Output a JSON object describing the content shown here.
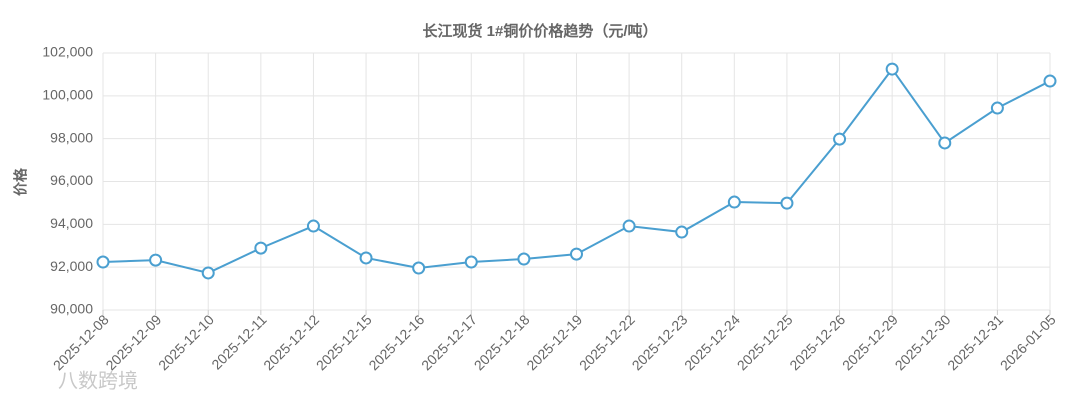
{
  "chart_data": {
    "type": "line",
    "title": "长江现货 1#铜价价格趋势（元/吨）",
    "y_label": "价格",
    "watermark": "八数跨境",
    "categories": [
      "2025-12-08",
      "2025-12-09",
      "2025-12-10",
      "2025-12-11",
      "2025-12-12",
      "2025-12-15",
      "2025-12-16",
      "2025-12-17",
      "2025-12-18",
      "2025-12-19",
      "2025-12-22",
      "2025-12-23",
      "2025-12-24",
      "2025-12-25",
      "2025-12-26",
      "2025-12-29",
      "2025-12-30",
      "2025-12-31",
      "2026-01-05"
    ],
    "values": [
      92240,
      92330,
      91730,
      92890,
      93920,
      92430,
      91960,
      92240,
      92380,
      92610,
      93920,
      93640,
      95040,
      94990,
      97980,
      101250,
      97800,
      99430,
      100690
    ],
    "color": "#4a9fd0",
    "ylim": [
      90000,
      102000
    ],
    "yticks": [
      {
        "value": 90000,
        "label": "90,000"
      },
      {
        "value": 92000,
        "label": "92,000"
      },
      {
        "value": 94000,
        "label": "94,000"
      },
      {
        "value": 96000,
        "label": "96,000"
      },
      {
        "value": 98000,
        "label": "98,000"
      },
      {
        "value": 100000,
        "label": "100,000"
      },
      {
        "value": 102000,
        "label": "102,000"
      }
    ],
    "grid": true
  }
}
